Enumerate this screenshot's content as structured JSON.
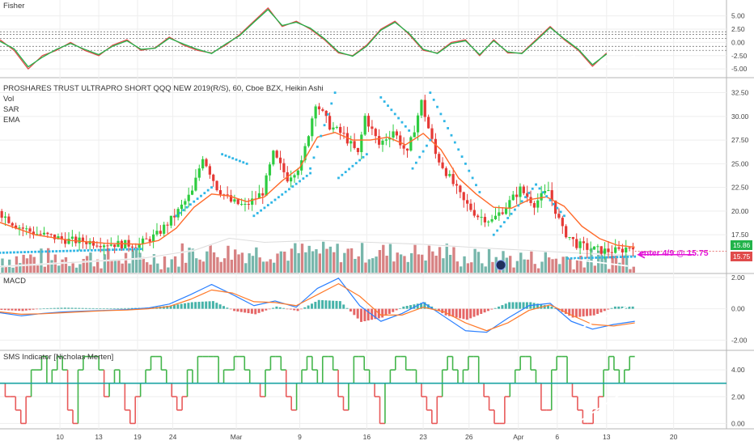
{
  "chart_data": [
    {
      "panel": "fisher",
      "type": "line",
      "title": "Fisher",
      "ylim": [
        -6.5,
        8
      ],
      "y_ticks": [
        5.0,
        2.5,
        0.0,
        -2.5,
        -5.0
      ],
      "y_tick_labels": [
        "5.00",
        "2.50",
        "0.00",
        "-2.50",
        "-5.00"
      ],
      "dashed_levels": [
        2.0,
        1.5,
        0.75,
        -0.75,
        -1.5
      ],
      "x": [
        0,
        4,
        8,
        12,
        16,
        20,
        24,
        28,
        32,
        36,
        40,
        44,
        48,
        52,
        56,
        60,
        64,
        68,
        72,
        76,
        80,
        84,
        88,
        92,
        96,
        100,
        104,
        108,
        112,
        116,
        120,
        124,
        128,
        132,
        136,
        140,
        144,
        148,
        152,
        156,
        160,
        164,
        168,
        172
      ],
      "series": [
        {
          "color": "#e04b4b",
          "values": [
            0.5,
            -1.5,
            -5,
            -2.5,
            -1.5,
            0,
            -1.5,
            -2.5,
            -0.5,
            0.5,
            -1.5,
            -1,
            1,
            -0.5,
            -1.5,
            -2,
            -0.5,
            1.5,
            4,
            6.5,
            3,
            4,
            2.5,
            0.5,
            -2,
            -2.5,
            -0.5,
            2.5,
            4,
            1.5,
            -1.5,
            -2,
            0,
            0.5,
            -2.5,
            0.5,
            -2,
            -2,
            0.5,
            3,
            0.5,
            -1.5,
            -4.5,
            -2
          ]
        },
        {
          "color": "#22b34a",
          "values": [
            0.2,
            -1.2,
            -4.6,
            -2.8,
            -1.3,
            -0.2,
            -1.3,
            -2.3,
            -0.7,
            0.3,
            -1.3,
            -1.1,
            0.8,
            -0.3,
            -1.3,
            -2.1,
            -0.3,
            1.3,
            3.8,
            6.2,
            3.2,
            3.8,
            2.7,
            0.7,
            -1.8,
            -2.6,
            -0.7,
            2.3,
            3.8,
            1.7,
            -1.3,
            -2.1,
            -0.2,
            0.3,
            -2.3,
            0.3,
            -1.8,
            -2.1,
            0.3,
            2.8,
            0.7,
            -1.3,
            -4.2,
            -2.2
          ]
        }
      ],
      "trendline": {
        "x": [
          165,
          180
        ],
        "y": [
          -5.4,
          -2.6
        ]
      }
    },
    {
      "panel": "price",
      "type": "candlestick",
      "title": "PROSHARES TRUST ULTRAPRO SHORT QQQ NEW 2019(R/S), 60, Cboe BZX, Heikin Ashi",
      "indicators": [
        "Vol",
        "SAR",
        "EMA"
      ],
      "ylim": [
        13.5,
        34
      ],
      "y_ticks": [
        32.5,
        30.0,
        27.5,
        25.0,
        22.5,
        20.0,
        17.5
      ],
      "y_tick_labels": [
        "32.50",
        "30.00",
        "27.50",
        "25.00",
        "22.50",
        "20.00",
        "17.50"
      ],
      "close_path": {
        "x": [
          0,
          5,
          10,
          15,
          20,
          25,
          30,
          35,
          40,
          45,
          50,
          55,
          58,
          62,
          66,
          70,
          75,
          78,
          82,
          86,
          90,
          94,
          98,
          102,
          104,
          108,
          112,
          116,
          120,
          124,
          128,
          132,
          136,
          140,
          144,
          148,
          152,
          156,
          160,
          164,
          168,
          172,
          176,
          180
        ],
        "y": [
          20,
          18.5,
          17.7,
          17.3,
          16.9,
          16.8,
          16.6,
          16.5,
          16.5,
          17.5,
          19.5,
          22,
          25.8,
          22.5,
          21,
          20.5,
          22,
          26,
          23.5,
          25,
          31.5,
          29,
          28,
          26,
          30,
          27,
          28.5,
          26,
          31.5,
          26,
          23.5,
          21,
          19.5,
          19,
          20.5,
          22.3,
          20.8,
          22.2,
          18,
          16.5,
          16,
          15.8,
          15.8,
          16.4
        ]
      },
      "ema_path": {
        "x": [
          0,
          10,
          20,
          30,
          40,
          45,
          50,
          55,
          60,
          65,
          70,
          75,
          80,
          85,
          90,
          95,
          100,
          105,
          110,
          115,
          120,
          125,
          130,
          135,
          140,
          145,
          150,
          155,
          160,
          165,
          170,
          175,
          180
        ],
        "y": [
          18.8,
          17.5,
          16.9,
          16.6,
          16.5,
          16.9,
          18.2,
          20.4,
          21.8,
          21.6,
          21,
          21.5,
          23.2,
          24.6,
          27.8,
          28.3,
          27.5,
          27.5,
          27.8,
          27,
          28.2,
          26.5,
          23.5,
          21.8,
          20.4,
          20.3,
          21.2,
          21.5,
          20.5,
          18.4,
          17.1,
          16.4,
          16.2
        ]
      },
      "sar_segments": [
        {
          "x": [
            0,
            40
          ],
          "y": [
            15.6,
            16.0
          ]
        },
        {
          "x": [
            50,
            60
          ],
          "y": [
            19.5,
            22.5
          ]
        },
        {
          "x": [
            63,
            70
          ],
          "y": [
            26.0,
            25.0
          ]
        },
        {
          "x": [
            72,
            88
          ],
          "y": [
            19.5,
            24.0
          ]
        },
        {
          "x": [
            88,
            95
          ],
          "y": [
            24.5,
            32.5
          ]
        },
        {
          "x": [
            96,
            104
          ],
          "y": [
            23.5,
            26.0
          ]
        },
        {
          "x": [
            108,
            116
          ],
          "y": [
            32.0,
            28.5
          ]
        },
        {
          "x": [
            117,
            122
          ],
          "y": [
            24.5,
            27.5
          ]
        },
        {
          "x": [
            122,
            136
          ],
          "y": [
            32.5,
            22.0
          ]
        },
        {
          "x": [
            140,
            152
          ],
          "y": [
            17.5,
            22.8
          ]
        },
        {
          "x": [
            152,
            160
          ],
          "y": [
            22.8,
            19.5
          ]
        },
        {
          "x": [
            161,
            180
          ],
          "y": [
            15.0,
            15.2
          ]
        }
      ],
      "price_labels": [
        {
          "text": "15.86",
          "color": "#22b34a"
        },
        {
          "text": "15.75",
          "color": "#e04b4b"
        }
      ],
      "volume_avg_path": {
        "x": [
          0,
          20,
          40,
          55,
          65,
          75,
          90,
          105,
          120,
          135,
          150,
          165,
          180
        ],
        "y": [
          0.15,
          0.25,
          0.35,
          0.55,
          0.85,
          0.75,
          0.8,
          0.75,
          0.7,
          0.62,
          0.55,
          0.48,
          0.42
        ]
      },
      "trendline": {
        "x": [
          163,
          178
        ],
        "y": [
          14.9,
          14.2
        ]
      }
    },
    {
      "panel": "macd",
      "type": "line",
      "title": "MACD",
      "ylim": [
        -2.6,
        2.2
      ],
      "y_ticks": [
        2.0,
        0.0,
        -2.0
      ],
      "y_tick_labels": [
        "2.00",
        "0.00",
        "-2.00"
      ],
      "x": [
        0,
        6,
        12,
        18,
        24,
        30,
        36,
        42,
        48,
        54,
        60,
        66,
        72,
        78,
        84,
        90,
        96,
        102,
        108,
        114,
        120,
        126,
        132,
        138,
        144,
        150,
        156,
        162,
        168,
        174,
        180
      ],
      "series": [
        {
          "color": "#2a7fff",
          "values": [
            -0.25,
            -0.45,
            -0.3,
            -0.2,
            -0.15,
            -0.1,
            -0.05,
            0.05,
            0.3,
            0.9,
            1.55,
            0.9,
            0.2,
            0.5,
            0.1,
            1.3,
            1.95,
            0.2,
            -0.8,
            -0.3,
            0.4,
            -0.5,
            -1.4,
            -1.5,
            -0.6,
            0.2,
            0.35,
            -0.8,
            -1.3,
            -1.0,
            -0.8
          ]
        },
        {
          "color": "#ff7a2a",
          "values": [
            -0.2,
            -0.35,
            -0.32,
            -0.25,
            -0.18,
            -0.12,
            -0.08,
            0.0,
            0.15,
            0.6,
            1.2,
            1.0,
            0.45,
            0.4,
            0.2,
            0.9,
            1.6,
            0.8,
            -0.4,
            -0.4,
            0.1,
            -0.2,
            -0.9,
            -1.4,
            -0.9,
            -0.1,
            0.25,
            -0.4,
            -1.0,
            -1.1,
            -0.9
          ]
        }
      ],
      "histogram_color_pos": "#26a69a",
      "histogram_color_neg": "#e04b4b",
      "trendline": {
        "x": [
          165,
          180
        ],
        "y": [
          -1.2,
          0.35
        ]
      }
    },
    {
      "panel": "sms",
      "type": "step",
      "title": "SMS Indicator [Nicholas Merten]",
      "ylim": [
        -0.4,
        5.4
      ],
      "y_ticks": [
        4.0,
        2.0,
        0.0
      ],
      "y_tick_labels": [
        "4.00",
        "2.00",
        "0.00"
      ],
      "level": 3.0,
      "level_color": "#1aa3a3",
      "steps": [
        3,
        2,
        2,
        1,
        0,
        2,
        4,
        4,
        5,
        3,
        4,
        5,
        4,
        1,
        0,
        4,
        5,
        5,
        5,
        4,
        2,
        3,
        4,
        3,
        1,
        0,
        2,
        3,
        4,
        5,
        5,
        4,
        3,
        2,
        1,
        2,
        4,
        3,
        5,
        5,
        5,
        5,
        3,
        4,
        4,
        5,
        5,
        4,
        3,
        3,
        2,
        4,
        5,
        5,
        4,
        2,
        1,
        3,
        4,
        5,
        4,
        3,
        5,
        5,
        4,
        2,
        1,
        3,
        5,
        5,
        4,
        3,
        2,
        0,
        3,
        4,
        5,
        5,
        4,
        4,
        3,
        2,
        1,
        0,
        2,
        4,
        5,
        4,
        3,
        4,
        5,
        5,
        3,
        2,
        1,
        0,
        0,
        2,
        3,
        4,
        5,
        5,
        4,
        3,
        1,
        1,
        4,
        5,
        5,
        3,
        2,
        1,
        0,
        0,
        1,
        2,
        4,
        5,
        4,
        3,
        4,
        5
      ],
      "trendline": {
        "x": [
          164,
          180
        ],
        "y": [
          0.1,
          2.9
        ]
      }
    }
  ],
  "x_axis": {
    "domain": [
      0,
      206
    ],
    "ticks": [
      {
        "x": 17,
        "label": "10"
      },
      {
        "x": 28,
        "label": "13"
      },
      {
        "x": 39,
        "label": "19"
      },
      {
        "x": 49,
        "label": "24"
      },
      {
        "x": 67,
        "label": "Mar"
      },
      {
        "x": 85,
        "label": "9"
      },
      {
        "x": 104,
        "label": "16"
      },
      {
        "x": 120,
        "label": "23"
      },
      {
        "x": 133,
        "label": "26"
      },
      {
        "x": 147,
        "label": "Apr"
      },
      {
        "x": 158,
        "label": "6"
      },
      {
        "x": 172,
        "label": "13"
      },
      {
        "x": 191,
        "label": "20"
      }
    ]
  },
  "annotation": {
    "text": "enter 4/9 @ 15.75",
    "color": "#e213d8"
  }
}
